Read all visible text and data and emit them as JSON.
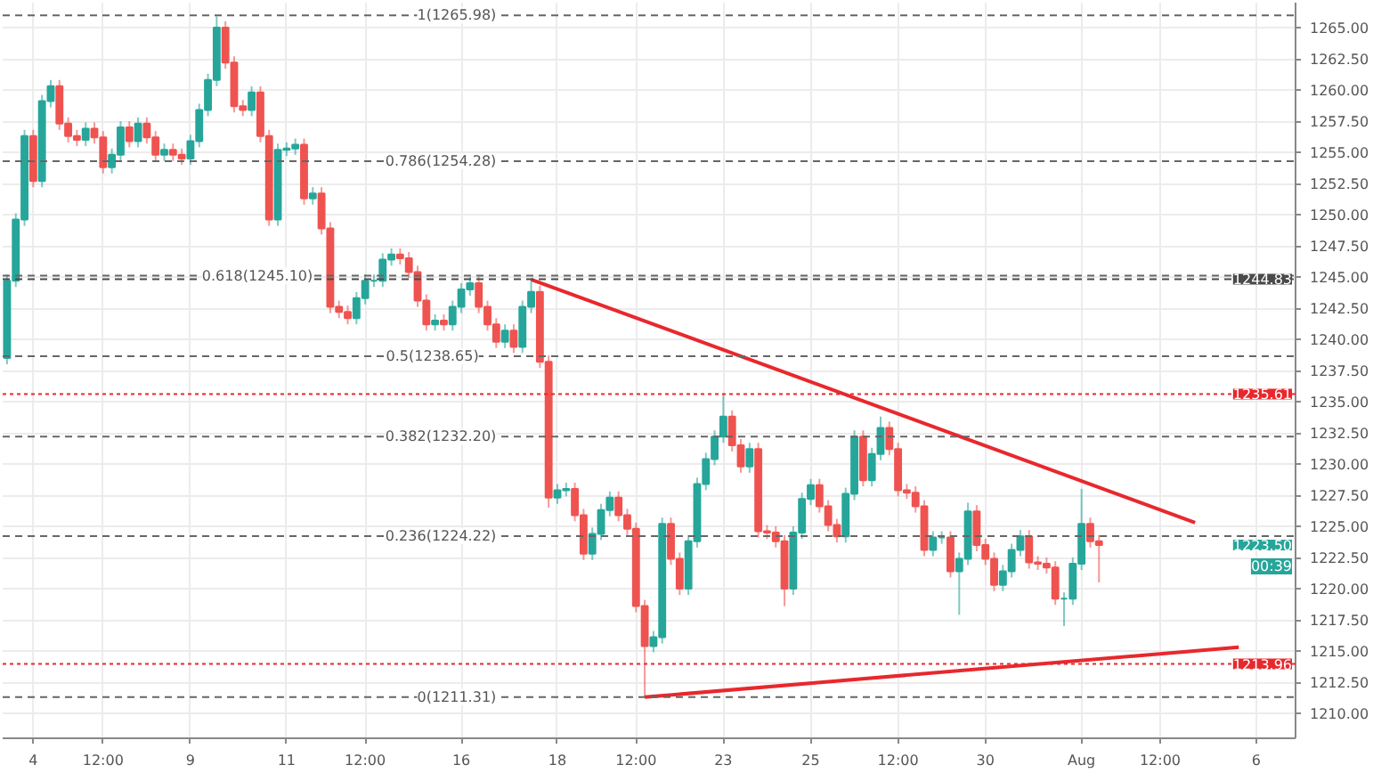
{
  "chart_data": {
    "type": "candlestick",
    "categories": [
      null,
      null,
      null,
      "4",
      null,
      null,
      null,
      null,
      null,
      null,
      null,
      "12:00",
      null,
      null,
      null,
      null,
      null,
      null,
      null,
      null,
      null,
      "9",
      null,
      null,
      null,
      null,
      null,
      null,
      null,
      null,
      null,
      null,
      "11",
      null,
      null,
      null,
      null,
      null,
      null,
      null,
      null,
      "12:00",
      null,
      null,
      null,
      null,
      null,
      null,
      null,
      null,
      null,
      null,
      "16",
      null,
      null,
      null,
      null,
      null,
      null,
      null,
      null,
      null,
      null,
      "18",
      null,
      null,
      null,
      null,
      null,
      null,
      null,
      null,
      "12:00",
      null,
      null,
      null,
      null,
      null,
      null,
      null,
      null,
      null,
      "23",
      null,
      null,
      null,
      null,
      null,
      null,
      null,
      null,
      null,
      "25",
      null,
      null,
      null,
      null,
      null,
      null,
      null,
      null,
      null,
      "12:00",
      null,
      null,
      null,
      null,
      null,
      null,
      null,
      null,
      null,
      "30",
      null,
      null,
      null,
      null,
      null,
      null,
      null,
      null,
      null,
      null,
      "Aug",
      null,
      null,
      null,
      null,
      null,
      null,
      null,
      null,
      "12:00",
      null,
      null,
      null,
      null,
      null,
      null,
      null,
      null,
      null,
      null,
      "6",
      null,
      null,
      null,
      null
    ],
    "ohlc": [
      [
        1238.5,
        1245.2,
        1238.0,
        1244.7
      ],
      [
        1244.7,
        1250.1,
        1244.2,
        1249.6
      ],
      [
        1249.6,
        1256.8,
        1249.1,
        1256.3
      ],
      [
        1256.3,
        1256.8,
        1252.2,
        1252.7
      ],
      [
        1252.7,
        1259.6,
        1252.2,
        1259.1
      ],
      [
        1259.1,
        1260.8,
        1258.6,
        1260.3
      ],
      [
        1260.3,
        1260.8,
        1256.8,
        1257.3
      ],
      [
        1257.3,
        1257.8,
        1255.8,
        1256.3
      ],
      [
        1256.3,
        1256.8,
        1255.5,
        1256.0
      ],
      [
        1256.0,
        1257.4,
        1255.5,
        1256.9
      ],
      [
        1256.9,
        1257.4,
        1255.7,
        1256.2
      ],
      [
        1256.2,
        1256.7,
        1253.3,
        1253.8
      ],
      [
        1253.8,
        1255.3,
        1253.3,
        1254.8
      ],
      [
        1254.8,
        1257.5,
        1254.3,
        1257.0
      ],
      [
        1257.0,
        1257.5,
        1255.4,
        1255.9
      ],
      [
        1255.9,
        1257.8,
        1255.4,
        1257.3
      ],
      [
        1257.3,
        1257.8,
        1255.7,
        1256.2
      ],
      [
        1256.2,
        1256.7,
        1254.3,
        1254.8
      ],
      [
        1254.8,
        1255.7,
        1254.3,
        1255.2
      ],
      [
        1255.2,
        1255.7,
        1254.3,
        1254.8
      ],
      [
        1254.8,
        1255.3,
        1254.0,
        1254.5
      ],
      [
        1254.5,
        1256.4,
        1254.0,
        1255.9
      ],
      [
        1255.9,
        1258.9,
        1255.4,
        1258.4
      ],
      [
        1258.4,
        1261.3,
        1257.9,
        1260.8
      ],
      [
        1260.8,
        1265.9,
        1260.3,
        1265.0
      ],
      [
        1265.0,
        1265.5,
        1261.7,
        1262.2
      ],
      [
        1262.2,
        1262.7,
        1258.2,
        1258.7
      ],
      [
        1258.7,
        1259.2,
        1257.9,
        1258.4
      ],
      [
        1258.4,
        1260.3,
        1257.9,
        1259.8
      ],
      [
        1259.8,
        1260.3,
        1255.8,
        1256.3
      ],
      [
        1256.3,
        1256.8,
        1249.1,
        1249.6
      ],
      [
        1249.6,
        1255.7,
        1249.1,
        1255.2
      ],
      [
        1255.2,
        1255.8,
        1254.7,
        1255.3
      ],
      [
        1255.3,
        1256.1,
        1254.8,
        1255.6
      ],
      [
        1255.6,
        1256.1,
        1250.8,
        1251.3
      ],
      [
        1251.3,
        1252.2,
        1250.8,
        1251.7
      ],
      [
        1251.7,
        1252.2,
        1248.4,
        1248.9
      ],
      [
        1248.9,
        1249.4,
        1242.1,
        1242.6
      ],
      [
        1242.6,
        1243.1,
        1241.7,
        1242.2
      ],
      [
        1242.2,
        1242.7,
        1241.2,
        1241.7
      ],
      [
        1241.7,
        1243.8,
        1241.2,
        1243.3
      ],
      [
        1243.3,
        1245.2,
        1242.8,
        1244.7
      ],
      [
        1244.7,
        1245.2,
        1244.2,
        1244.7
      ],
      [
        1244.7,
        1246.9,
        1244.2,
        1246.4
      ],
      [
        1246.4,
        1247.3,
        1245.9,
        1246.8
      ],
      [
        1246.8,
        1247.3,
        1246.0,
        1246.5
      ],
      [
        1246.5,
        1247.0,
        1244.9,
        1245.4
      ],
      [
        1245.4,
        1245.9,
        1242.6,
        1243.1
      ],
      [
        1243.1,
        1243.6,
        1240.7,
        1241.2
      ],
      [
        1241.2,
        1242.0,
        1240.7,
        1241.5
      ],
      [
        1241.5,
        1242.0,
        1240.7,
        1241.2
      ],
      [
        1241.2,
        1243.1,
        1240.7,
        1242.6
      ],
      [
        1242.6,
        1244.5,
        1242.1,
        1244.0
      ],
      [
        1244.0,
        1245.0,
        1243.5,
        1244.5
      ],
      [
        1244.5,
        1245.0,
        1242.1,
        1242.6
      ],
      [
        1242.6,
        1243.1,
        1240.7,
        1241.2
      ],
      [
        1241.2,
        1241.7,
        1239.3,
        1239.8
      ],
      [
        1239.8,
        1241.2,
        1239.3,
        1240.7
      ],
      [
        1240.7,
        1241.2,
        1238.9,
        1239.4
      ],
      [
        1239.4,
        1243.1,
        1238.9,
        1242.6
      ],
      [
        1242.6,
        1244.7,
        1242.1,
        1243.8
      ],
      [
        1243.8,
        1244.3,
        1237.7,
        1238.2
      ],
      [
        1238.2,
        1238.7,
        1226.5,
        1227.3
      ],
      [
        1227.3,
        1228.4,
        1226.8,
        1227.9
      ],
      [
        1227.9,
        1228.5,
        1227.4,
        1228.0
      ],
      [
        1228.0,
        1228.5,
        1225.4,
        1225.9
      ],
      [
        1225.9,
        1226.4,
        1222.3,
        1222.8
      ],
      [
        1222.8,
        1224.9,
        1222.3,
        1224.4
      ],
      [
        1224.4,
        1226.8,
        1223.9,
        1226.3
      ],
      [
        1226.3,
        1227.8,
        1225.8,
        1227.3
      ],
      [
        1227.3,
        1227.8,
        1225.4,
        1225.9
      ],
      [
        1225.9,
        1226.4,
        1224.3,
        1224.8
      ],
      [
        1224.8,
        1225.3,
        1218.1,
        1218.6
      ],
      [
        1218.6,
        1219.1,
        1211.3,
        1215.4
      ],
      [
        1215.4,
        1216.6,
        1214.9,
        1216.1
      ],
      [
        1216.1,
        1225.7,
        1215.6,
        1225.2
      ],
      [
        1225.2,
        1225.7,
        1221.9,
        1222.4
      ],
      [
        1222.4,
        1222.9,
        1219.5,
        1220.0
      ],
      [
        1220.0,
        1224.3,
        1219.5,
        1223.8
      ],
      [
        1223.8,
        1228.9,
        1223.3,
        1228.4
      ],
      [
        1228.4,
        1230.9,
        1227.9,
        1230.4
      ],
      [
        1230.4,
        1232.7,
        1229.9,
        1232.2
      ],
      [
        1232.2,
        1235.6,
        1231.7,
        1233.8
      ],
      [
        1233.8,
        1234.3,
        1231.0,
        1231.5
      ],
      [
        1231.5,
        1232.0,
        1229.3,
        1229.8
      ],
      [
        1229.8,
        1231.7,
        1229.3,
        1231.2
      ],
      [
        1231.2,
        1231.7,
        1224.1,
        1224.6
      ],
      [
        1224.6,
        1225.1,
        1224.0,
        1224.5
      ],
      [
        1224.5,
        1225.0,
        1223.3,
        1223.8
      ],
      [
        1223.8,
        1224.3,
        1218.6,
        1220.0
      ],
      [
        1220.0,
        1225.0,
        1219.5,
        1224.5
      ],
      [
        1224.5,
        1227.7,
        1224.0,
        1227.2
      ],
      [
        1227.2,
        1228.8,
        1226.7,
        1228.3
      ],
      [
        1228.3,
        1228.8,
        1226.1,
        1226.6
      ],
      [
        1226.6,
        1227.1,
        1224.6,
        1225.1
      ],
      [
        1225.1,
        1225.6,
        1223.7,
        1224.2
      ],
      [
        1224.2,
        1228.1,
        1223.7,
        1227.6
      ],
      [
        1227.6,
        1232.7,
        1227.1,
        1232.2
      ],
      [
        1232.2,
        1232.7,
        1228.2,
        1228.7
      ],
      [
        1228.7,
        1231.3,
        1228.2,
        1230.8
      ],
      [
        1230.8,
        1233.8,
        1230.3,
        1232.9
      ],
      [
        1232.9,
        1233.4,
        1230.7,
        1231.2
      ],
      [
        1231.2,
        1231.7,
        1227.4,
        1227.9
      ],
      [
        1227.9,
        1228.4,
        1227.2,
        1227.7
      ],
      [
        1227.7,
        1228.2,
        1226.1,
        1226.6
      ],
      [
        1226.6,
        1227.1,
        1222.6,
        1223.1
      ],
      [
        1223.1,
        1224.6,
        1222.6,
        1224.1
      ],
      [
        1224.1,
        1224.6,
        1223.6,
        1224.1
      ],
      [
        1224.1,
        1224.6,
        1220.9,
        1221.4
      ],
      [
        1221.4,
        1222.9,
        1217.9,
        1222.4
      ],
      [
        1222.4,
        1226.9,
        1221.9,
        1226.2
      ],
      [
        1226.2,
        1226.7,
        1223.0,
        1223.5
      ],
      [
        1223.5,
        1224.0,
        1221.9,
        1222.4
      ],
      [
        1222.4,
        1222.9,
        1219.8,
        1220.3
      ],
      [
        1220.3,
        1221.9,
        1219.8,
        1221.4
      ],
      [
        1221.4,
        1223.6,
        1220.9,
        1223.1
      ],
      [
        1223.1,
        1224.7,
        1222.6,
        1224.2
      ],
      [
        1224.2,
        1224.7,
        1221.6,
        1222.1
      ],
      [
        1222.1,
        1222.6,
        1221.5,
        1222.0
      ],
      [
        1222.0,
        1222.5,
        1221.2,
        1221.7
      ],
      [
        1221.7,
        1222.2,
        1218.7,
        1219.2
      ],
      [
        1219.2,
        1219.7,
        1217.0,
        1219.2
      ],
      [
        1219.2,
        1222.5,
        1218.7,
        1222.0
      ],
      [
        1222.0,
        1228.0,
        1221.5,
        1225.2
      ],
      [
        1225.2,
        1225.7,
        1223.3,
        1223.8
      ],
      [
        1223.8,
        1224.3,
        1220.5,
        1223.5
      ],
      null,
      null,
      null,
      null,
      null,
      null,
      null,
      null,
      null,
      null,
      null,
      null,
      null,
      null,
      null,
      null,
      null,
      null,
      null,
      null,
      null,
      null
    ],
    "series": [
      {
        "type": "line",
        "color": "#e8282d",
        "values": [
          null,
          null,
          null,
          null,
          null,
          null,
          null,
          null,
          null,
          null,
          null,
          null,
          null,
          null,
          null,
          null,
          null,
          null,
          null,
          null,
          null,
          null,
          null,
          null,
          null,
          null,
          null,
          null,
          null,
          null,
          null,
          null,
          null,
          null,
          null,
          null,
          null,
          null,
          null,
          null,
          null,
          null,
          null,
          null,
          null,
          null,
          null,
          null,
          null,
          null,
          null,
          null,
          null,
          null,
          null,
          null,
          null,
          null,
          null,
          null,
          1244.8,
          null,
          null,
          null,
          null,
          null,
          null,
          null,
          null,
          null,
          null,
          null,
          null,
          null,
          null,
          null,
          null,
          null,
          null,
          null,
          null,
          null,
          null,
          null,
          null,
          null,
          null,
          null,
          null,
          null,
          null,
          null,
          null,
          null,
          null,
          null,
          null,
          null,
          null,
          null,
          null,
          null,
          null,
          null,
          null,
          null,
          null,
          null,
          null,
          null,
          null,
          null,
          null,
          null,
          null,
          null,
          null,
          null,
          null,
          null,
          null,
          null,
          null,
          null,
          null,
          null,
          null,
          null,
          null,
          null,
          null,
          null,
          null,
          null,
          null,
          null,
          1225.3,
          null,
          null,
          null,
          null,
          null,
          null,
          null,
          null,
          null,
          null,
          null
        ]
      },
      {
        "type": "line",
        "color": "#e8282d",
        "values": [
          null,
          null,
          null,
          null,
          null,
          null,
          null,
          null,
          null,
          null,
          null,
          null,
          null,
          null,
          null,
          null,
          null,
          null,
          null,
          null,
          null,
          null,
          null,
          null,
          null,
          null,
          null,
          null,
          null,
          null,
          null,
          null,
          null,
          null,
          null,
          null,
          null,
          null,
          null,
          null,
          null,
          null,
          null,
          null,
          null,
          null,
          null,
          null,
          null,
          null,
          null,
          null,
          null,
          null,
          null,
          null,
          null,
          null,
          null,
          null,
          null,
          null,
          null,
          null,
          null,
          null,
          null,
          null,
          null,
          null,
          null,
          null,
          null,
          1211.3,
          null,
          null,
          null,
          null,
          null,
          null,
          null,
          null,
          null,
          null,
          null,
          null,
          null,
          null,
          null,
          null,
          null,
          null,
          null,
          null,
          null,
          null,
          null,
          null,
          null,
          null,
          null,
          null,
          null,
          null,
          null,
          null,
          null,
          null,
          null,
          null,
          null,
          null,
          null,
          null,
          null,
          null,
          null,
          null,
          null,
          null,
          null,
          null,
          null,
          null,
          null,
          null,
          null,
          null,
          null,
          null,
          null,
          null,
          null,
          null,
          null,
          null,
          null,
          null,
          null,
          null,
          null,
          1215.3,
          null,
          null,
          null,
          null,
          null,
          null
        ]
      }
    ],
    "ref_lines": [
      {
        "axis": "y",
        "value": 1265.98,
        "label": "1(1265.98)"
      },
      {
        "axis": "y",
        "value": 1254.28,
        "label": "0.786(1254.28)"
      },
      {
        "axis": "y",
        "value": 1245.1,
        "label": "0.618(1245.10)"
      },
      {
        "axis": "y",
        "value": 1238.65,
        "label": "0.5(1238.65)"
      },
      {
        "axis": "y",
        "value": 1232.2,
        "label": "0.382(1232.20)"
      },
      {
        "axis": "y",
        "value": 1224.22,
        "label": "0.236(1224.22)"
      },
      {
        "axis": "y",
        "value": 1211.31,
        "label": "0(1211.31)"
      },
      {
        "axis": "y",
        "value": 1244.83,
        "label": "1244.83",
        "color": "#4a4a4a",
        "line_style": "dashed"
      },
      {
        "axis": "y",
        "value": 1235.61,
        "label": "1235.61",
        "color": "#e8282d",
        "line_style": "dotted"
      },
      {
        "axis": "y",
        "value": 1213.96,
        "label": "1213.96",
        "color": "#e8282d",
        "line_style": "dotted"
      }
    ],
    "annotations": [
      "1223.50",
      "00:39"
    ],
    "ylim": [
      1208.0,
      1267.0
    ],
    "yticks": [
      {
        "value": 1210,
        "label": "1210.00"
      },
      {
        "value": 1212.5,
        "label": "1212.50"
      },
      {
        "value": 1215,
        "label": "1215.00"
      },
      {
        "value": 1217.5,
        "label": "1217.50"
      },
      {
        "value": 1220,
        "label": "1220.00"
      },
      {
        "value": 1222.5,
        "label": "1222.50"
      },
      {
        "value": 1225,
        "label": "1225.00"
      },
      {
        "value": 1227.5,
        "label": "1227.50"
      },
      {
        "value": 1230,
        "label": "1230.00"
      },
      {
        "value": 1232.5,
        "label": "1232.50"
      },
      {
        "value": 1235,
        "label": "1235.00"
      },
      {
        "value": 1237.5,
        "label": "1237.50"
      },
      {
        "value": 1240,
        "label": "1240.00"
      },
      {
        "value": 1242.5,
        "label": "1242.50"
      },
      {
        "value": 1245,
        "label": "1245.00"
      },
      {
        "value": 1247.5,
        "label": "1247.50"
      },
      {
        "value": 1250,
        "label": "1250.00"
      },
      {
        "value": 1252.5,
        "label": "1252.50"
      },
      {
        "value": 1255,
        "label": "1255.00"
      },
      {
        "value": 1257.5,
        "label": "1257.50"
      },
      {
        "value": 1260,
        "label": "1260.00"
      },
      {
        "value": 1262.5,
        "label": "1262.50"
      },
      {
        "value": 1265,
        "label": "1265.00"
      }
    ],
    "grid": true
  }
}
